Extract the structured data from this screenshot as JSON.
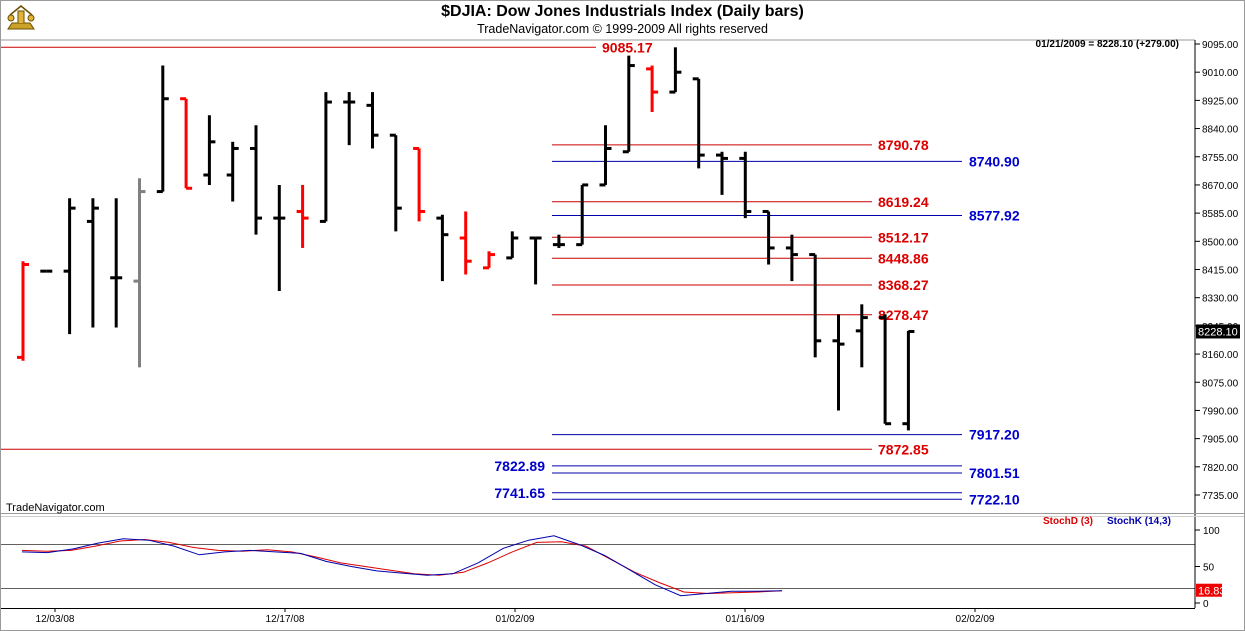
{
  "header": {
    "title": "$DJIA:  Dow Jones Industrials Index  (Daily bars)",
    "copyright": "TradeNavigator.com © 1999-2009 All rights reserved"
  },
  "watermark": "TradeNavigator.com",
  "info_line": "01/21/2009 = 8228.10 (+279.00)",
  "last_price_badge": "8228.10",
  "stoch": {
    "legend_d": "StochD (3)",
    "legend_k": "StochK (14,3)",
    "last_badge": "16.83",
    "levels": [
      80,
      20
    ],
    "ticks": [
      "100",
      "50",
      "0"
    ]
  },
  "colors": {
    "up_bar": "#000000",
    "down_bar": "#ff0000",
    "neutral_bar": "#808080",
    "red_level": "#cc0000",
    "blue_level": "#0000aa",
    "stoch_d": "#dd0000",
    "stoch_k": "#0000aa"
  },
  "chart_data": {
    "type": "ohlc",
    "title": "$DJIA:  Dow Jones Industrials Index  (Daily bars)",
    "y_ticks": [
      "9095.00",
      "9010.00",
      "8925.00",
      "8840.00",
      "8755.00",
      "8670.00",
      "8585.00",
      "8500.00",
      "8415.00",
      "8330.00",
      "8245.00",
      "8160.00",
      "8075.00",
      "7990.00",
      "7905.00",
      "7820.00",
      "7735.00"
    ],
    "ylim": [
      7700,
      9110
    ],
    "x_ticks": [
      "12/03/08",
      "12/17/08",
      "01/02/09",
      "01/16/09",
      "02/02/09"
    ],
    "bars": [
      {
        "o": 8150,
        "h": 8440,
        "l": 8140,
        "c": 8430,
        "color": "red"
      },
      {
        "o": 8410,
        "h": 8410,
        "l": 8410,
        "c": 8410,
        "color": "black"
      },
      {
        "o": 8410,
        "h": 8630,
        "l": 8220,
        "c": 8600,
        "color": "black"
      },
      {
        "o": 8560,
        "h": 8630,
        "l": 8240,
        "c": 8600,
        "color": "black"
      },
      {
        "o": 8390,
        "h": 8630,
        "l": 8240,
        "c": 8390,
        "color": "black"
      },
      {
        "o": 8380,
        "h": 8690,
        "l": 8120,
        "c": 8650,
        "color": "gray"
      },
      {
        "o": 8650,
        "h": 9030,
        "l": 8650,
        "c": 8930,
        "color": "black"
      },
      {
        "o": 8930,
        "h": 8930,
        "l": 8660,
        "c": 8660,
        "color": "red"
      },
      {
        "o": 8700,
        "h": 8880,
        "l": 8670,
        "c": 8800,
        "color": "black"
      },
      {
        "o": 8700,
        "h": 8800,
        "l": 8620,
        "c": 8780,
        "color": "black"
      },
      {
        "o": 8780,
        "h": 8850,
        "l": 8520,
        "c": 8570,
        "color": "black"
      },
      {
        "o": 8570,
        "h": 8670,
        "l": 8350,
        "c": 8570,
        "color": "black"
      },
      {
        "o": 8590,
        "h": 8670,
        "l": 8480,
        "c": 8570,
        "color": "red"
      },
      {
        "o": 8560,
        "h": 8950,
        "l": 8560,
        "c": 8920,
        "color": "black"
      },
      {
        "o": 8920,
        "h": 8950,
        "l": 8790,
        "c": 8920,
        "color": "black"
      },
      {
        "o": 8910,
        "h": 8950,
        "l": 8780,
        "c": 8820,
        "color": "black"
      },
      {
        "o": 8820,
        "h": 8820,
        "l": 8530,
        "c": 8600,
        "color": "black"
      },
      {
        "o": 8780,
        "h": 8780,
        "l": 8560,
        "c": 8590,
        "color": "red"
      },
      {
        "o": 8570,
        "h": 8580,
        "l": 8380,
        "c": 8520,
        "color": "black"
      },
      {
        "o": 8510,
        "h": 8590,
        "l": 8400,
        "c": 8440,
        "color": "red"
      },
      {
        "o": 8420,
        "h": 8470,
        "l": 8420,
        "c": 8460,
        "color": "red"
      },
      {
        "o": 8450,
        "h": 8530,
        "l": 8450,
        "c": 8510,
        "color": "black"
      },
      {
        "o": 8510,
        "h": 8510,
        "l": 8370,
        "c": 8510,
        "color": "black"
      },
      {
        "o": 8490,
        "h": 8520,
        "l": 8480,
        "c": 8490,
        "color": "black"
      },
      {
        "o": 8490,
        "h": 8670,
        "l": 8490,
        "c": 8670,
        "color": "black"
      },
      {
        "o": 8670,
        "h": 8850,
        "l": 8670,
        "c": 8780,
        "color": "black"
      },
      {
        "o": 8770,
        "h": 9060,
        "l": 8770,
        "c": 9030,
        "color": "black"
      },
      {
        "o": 9020,
        "h": 9030,
        "l": 8890,
        "c": 8950,
        "color": "red"
      },
      {
        "o": 8950,
        "h": 9085,
        "l": 8950,
        "c": 9010,
        "color": "black"
      },
      {
        "o": 8990,
        "h": 8990,
        "l": 8720,
        "c": 8760,
        "color": "black"
      },
      {
        "o": 8760,
        "h": 8770,
        "l": 8640,
        "c": 8750,
        "color": "black"
      },
      {
        "o": 8750,
        "h": 8770,
        "l": 8570,
        "c": 8590,
        "color": "black"
      },
      {
        "o": 8590,
        "h": 8590,
        "l": 8430,
        "c": 8480,
        "color": "black"
      },
      {
        "o": 8480,
        "h": 8520,
        "l": 8380,
        "c": 8460,
        "color": "black"
      },
      {
        "o": 8460,
        "h": 8460,
        "l": 8150,
        "c": 8200,
        "color": "black"
      },
      {
        "o": 8200,
        "h": 8280,
        "l": 7990,
        "c": 8190,
        "color": "black"
      },
      {
        "o": 8230,
        "h": 8310,
        "l": 8120,
        "c": 8270,
        "color": "black"
      },
      {
        "o": 8270,
        "h": 8280,
        "l": 7950,
        "c": 7950,
        "color": "black"
      },
      {
        "o": 7950,
        "h": 8230,
        "l": 7930,
        "c": 8228.1,
        "color": "black"
      }
    ],
    "levels": [
      {
        "value": 9085.17,
        "label": "9085.17",
        "color": "red",
        "extend": "full"
      },
      {
        "value": 8790.78,
        "label": "8790.78",
        "color": "red",
        "extend": "partial"
      },
      {
        "value": 8740.9,
        "label": "8740.90",
        "color": "blue",
        "extend": "partial"
      },
      {
        "value": 8619.24,
        "label": "8619.24",
        "color": "red",
        "extend": "partial"
      },
      {
        "value": 8577.92,
        "label": "8577.92",
        "color": "blue",
        "extend": "partial"
      },
      {
        "value": 8512.17,
        "label": "8512.17",
        "color": "red",
        "extend": "partial"
      },
      {
        "value": 8448.86,
        "label": "8448.86",
        "color": "red",
        "extend": "partial"
      },
      {
        "value": 8368.27,
        "label": "8368.27",
        "color": "red",
        "extend": "partial"
      },
      {
        "value": 8278.47,
        "label": "8278.47",
        "color": "red",
        "extend": "partial"
      },
      {
        "value": 7917.2,
        "label": "7917.20",
        "color": "blue",
        "extend": "partial"
      },
      {
        "value": 7872.85,
        "label": "7872.85",
        "color": "red",
        "extend": "full"
      },
      {
        "value": 7822.89,
        "label": "7822.89",
        "color": "blue",
        "extend": "partial"
      },
      {
        "value": 7801.51,
        "label": "7801.51",
        "color": "blue",
        "extend": "partial"
      },
      {
        "value": 7741.65,
        "label": "7741.65",
        "color": "blue",
        "extend": "partial"
      },
      {
        "value": 7722.1,
        "label": "7722.10",
        "color": "blue",
        "extend": "partial"
      }
    ],
    "stoch_d": [
      72,
      71,
      72,
      78,
      85,
      87,
      83,
      76,
      72,
      71,
      73,
      70,
      63,
      55,
      50,
      45,
      40,
      38,
      42,
      55,
      70,
      83,
      84,
      78,
      60,
      42,
      28,
      15,
      13,
      14,
      15,
      16.8
    ],
    "stoch_k": [
      70,
      69,
      74,
      82,
      88,
      86,
      78,
      66,
      70,
      72,
      70,
      68,
      57,
      50,
      44,
      41,
      38,
      40,
      55,
      75,
      86,
      92,
      80,
      65,
      45,
      25,
      10,
      13,
      16,
      16,
      16.8
    ]
  }
}
